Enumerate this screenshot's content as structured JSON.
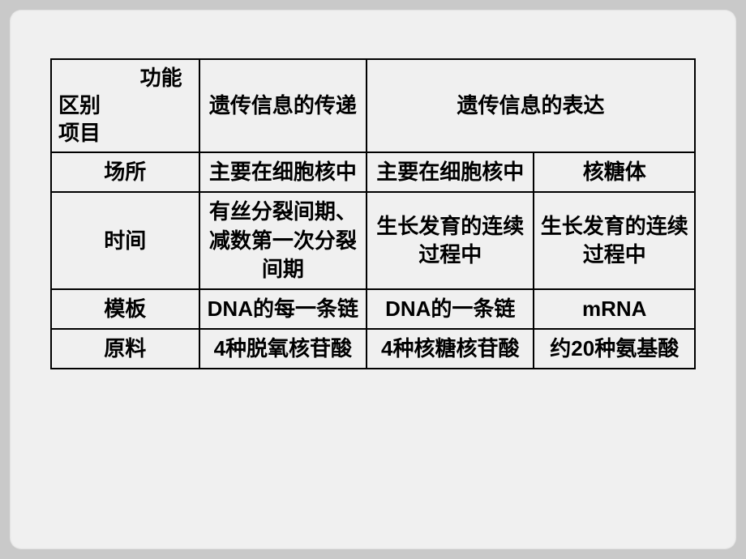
{
  "header": {
    "diag_top": "功能",
    "diag_mid": "区别",
    "diag_bot": "项目",
    "col1": "遗传信息的传递",
    "col2_merged": "遗传信息的表达"
  },
  "rows": [
    {
      "label": "场所",
      "c1": "主要在细胞核中",
      "c2": "主要在细胞核中",
      "c3": "核糖体"
    },
    {
      "label": "时间",
      "c1": "有丝分裂间期、减数第一次分裂间期",
      "c2": "生长发育的连续过程中",
      "c3": "生长发育的连续过程中"
    },
    {
      "label": "模板",
      "c1": "DNA的每一条链",
      "c2": "DNA的一条链",
      "c3": "mRNA"
    },
    {
      "label": "原料",
      "c1": "4种脱氧核苷酸",
      "c2": "4种核糖核苷酸",
      "c3": "约20种氨基酸"
    }
  ],
  "style": {
    "slide_bg": "#f0f0f0",
    "outer_bg": "#c9c9c9",
    "border_color": "#000000",
    "text_color": "#000000",
    "font_size_cell": 26
  }
}
